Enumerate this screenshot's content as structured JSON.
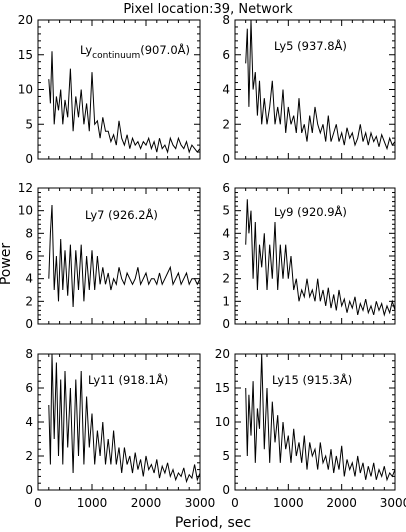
{
  "figure": {
    "title": "Pixel location:39, Network",
    "xlabel": "Period, sec",
    "ylabel": "Power"
  },
  "chart_data": [
    {
      "type": "line",
      "label_main": "Ly",
      "label_sub": "continuum",
      "label_rest": "(907.0Å)",
      "xlim": [
        0,
        3000
      ],
      "ylim": [
        0,
        20
      ],
      "yticks": [
        "0",
        "5",
        "10",
        "15",
        "20"
      ],
      "xticks": [
        "0",
        "1000",
        "2000",
        "3000"
      ],
      "x": [
        200,
        230,
        260,
        300,
        340,
        380,
        420,
        460,
        500,
        550,
        600,
        650,
        700,
        750,
        800,
        850,
        900,
        950,
        1000,
        1050,
        1100,
        1150,
        1200,
        1250,
        1300,
        1350,
        1400,
        1450,
        1500,
        1550,
        1600,
        1650,
        1700,
        1750,
        1800,
        1850,
        1900,
        1950,
        2000,
        2050,
        2100,
        2150,
        2200,
        2250,
        2300,
        2350,
        2400,
        2450,
        2500,
        2550,
        2600,
        2650,
        2700,
        2750,
        2800,
        2850,
        2900,
        2950,
        3000
      ],
      "values": [
        11.5,
        8,
        15.5,
        5,
        9,
        7,
        10,
        5,
        8.5,
        6,
        13,
        4,
        9,
        6,
        10,
        5,
        8,
        4,
        12.5,
        5,
        5.5,
        3,
        6,
        4,
        4,
        2.5,
        3.5,
        2,
        5.5,
        3,
        2,
        3.5,
        1.5,
        3,
        2,
        2.5,
        1.5,
        2.5,
        2,
        3,
        1.5,
        2.5,
        1,
        3,
        1.5,
        2,
        1,
        3,
        2,
        1.5,
        3,
        2,
        1.5,
        2.5,
        1,
        2,
        1.5,
        1,
        1.5
      ]
    },
    {
      "type": "line",
      "label_main": "Ly5",
      "label_sub": "",
      "label_rest": "(937.8Å)",
      "xlim": [
        0,
        3000
      ],
      "ylim": [
        0,
        8
      ],
      "yticks": [
        "0",
        "2",
        "4",
        "6",
        "8"
      ],
      "xticks": [
        "0",
        "1000",
        "2000",
        "3000"
      ],
      "x": [
        200,
        230,
        260,
        300,
        340,
        380,
        420,
        460,
        500,
        550,
        600,
        650,
        700,
        750,
        800,
        850,
        900,
        950,
        1000,
        1050,
        1100,
        1150,
        1200,
        1250,
        1300,
        1350,
        1400,
        1450,
        1500,
        1550,
        1600,
        1650,
        1700,
        1750,
        1800,
        1850,
        1900,
        1950,
        2000,
        2050,
        2100,
        2150,
        2200,
        2250,
        2300,
        2350,
        2400,
        2450,
        2500,
        2550,
        2600,
        2650,
        2700,
        2750,
        2800,
        2850,
        2900,
        2950,
        3000
      ],
      "values": [
        5.5,
        7.5,
        3,
        8,
        4,
        5,
        2.5,
        4.5,
        2,
        3.5,
        2,
        3,
        4.5,
        2,
        3,
        2,
        4,
        1.5,
        3,
        2,
        2.5,
        1.5,
        3.5,
        1.5,
        2,
        1,
        2.5,
        1.5,
        3,
        2,
        1.5,
        2,
        1,
        2.5,
        1,
        1.5,
        2,
        1,
        1.5,
        0.8,
        1.8,
        1.2,
        1.5,
        0.8,
        1.2,
        2,
        1,
        1.5,
        0.8,
        1.5,
        1,
        1.3,
        0.7,
        1.4,
        1,
        0.6,
        1.2,
        0.8,
        1
      ]
    },
    {
      "type": "line",
      "label_main": "Ly7",
      "label_sub": "",
      "label_rest": "(926.2Å)",
      "xlim": [
        0,
        3000
      ],
      "ylim": [
        0,
        12
      ],
      "yticks": [
        "0",
        "2",
        "4",
        "6",
        "8",
        "10",
        "12"
      ],
      "xticks": [
        "0",
        "1000",
        "2000",
        "3000"
      ],
      "x": [
        200,
        230,
        260,
        300,
        340,
        380,
        420,
        460,
        500,
        550,
        600,
        650,
        700,
        750,
        800,
        850,
        900,
        950,
        1000,
        1050,
        1100,
        1150,
        1200,
        1250,
        1300,
        1350,
        1400,
        1450,
        1500,
        1550,
        1600,
        1650,
        1700,
        1750,
        1800,
        1850,
        1900,
        1950,
        2000,
        2050,
        2100,
        2150,
        2200,
        2250,
        2300,
        2350,
        2400,
        2450,
        2500,
        2550,
        2600,
        2650,
        2700,
        2750,
        2800,
        2850,
        2900,
        2950,
        3000
      ],
      "values": [
        4,
        8,
        10.5,
        3,
        6,
        2,
        7.5,
        3,
        6.5,
        2.5,
        7,
        1.5,
        6.5,
        3,
        7,
        2,
        6,
        3,
        6.5,
        3,
        6,
        3.5,
        5,
        3.5,
        4.5,
        3,
        4,
        3.5,
        5,
        4,
        3.5,
        4.5,
        4,
        3.5,
        4,
        5,
        3.5,
        4,
        4.5,
        3.5,
        4,
        4,
        3.5,
        4.5,
        3.5,
        4,
        4.5,
        5,
        3.5,
        4,
        4.5,
        3.5,
        4,
        4.5,
        3.5,
        4,
        4,
        3.5,
        4
      ]
    },
    {
      "type": "line",
      "label_main": "Ly9",
      "label_sub": "",
      "label_rest": "(920.9Å)",
      "xlim": [
        0,
        3000
      ],
      "ylim": [
        0,
        6
      ],
      "yticks": [
        "0",
        "1",
        "2",
        "3",
        "4",
        "5",
        "6"
      ],
      "xticks": [
        "0",
        "1000",
        "2000",
        "3000"
      ],
      "x": [
        200,
        230,
        260,
        300,
        340,
        380,
        420,
        460,
        500,
        550,
        600,
        650,
        700,
        750,
        800,
        850,
        900,
        950,
        1000,
        1050,
        1100,
        1150,
        1200,
        1250,
        1300,
        1350,
        1400,
        1450,
        1500,
        1550,
        1600,
        1650,
        1700,
        1750,
        1800,
        1850,
        1900,
        1950,
        2000,
        2050,
        2100,
        2150,
        2200,
        2250,
        2300,
        2350,
        2400,
        2450,
        2500,
        2550,
        2600,
        2650,
        2700,
        2750,
        2800,
        2850,
        2900,
        2950,
        3000
      ],
      "values": [
        3.5,
        5.5,
        4,
        5,
        2,
        4.5,
        1.5,
        3.5,
        2.5,
        4,
        1.5,
        3.5,
        2,
        4.5,
        1.5,
        3.5,
        2,
        3.5,
        2,
        3,
        1.5,
        2,
        1,
        1.5,
        1.2,
        2,
        1.2,
        1.5,
        1,
        2,
        1,
        1.5,
        0.8,
        1.6,
        0.7,
        1.3,
        0.6,
        1.5,
        0.8,
        1.1,
        0.5,
        1,
        0.7,
        1.2,
        0.4,
        0.9,
        0.6,
        1.1,
        0.5,
        0.8,
        0.4,
        1,
        0.6,
        0.9,
        0.4,
        0.8,
        0.5,
        1,
        0.6
      ]
    },
    {
      "type": "line",
      "label_main": "Ly11",
      "label_sub": "",
      "label_rest": "(918.1Å)",
      "xlim": [
        0,
        3000
      ],
      "ylim": [
        0,
        8
      ],
      "yticks": [
        "0",
        "2",
        "4",
        "6",
        "8"
      ],
      "xticks": [
        "0",
        "1000",
        "2000",
        "3000"
      ],
      "x": [
        200,
        230,
        260,
        300,
        340,
        380,
        420,
        460,
        500,
        550,
        600,
        650,
        700,
        750,
        800,
        850,
        900,
        950,
        1000,
        1050,
        1100,
        1150,
        1200,
        1250,
        1300,
        1350,
        1400,
        1450,
        1500,
        1550,
        1600,
        1650,
        1700,
        1750,
        1800,
        1850,
        1900,
        1950,
        2000,
        2050,
        2100,
        2150,
        2200,
        2250,
        2300,
        2350,
        2400,
        2450,
        2500,
        2550,
        2600,
        2650,
        2700,
        2750,
        2800,
        2850,
        2900,
        2950,
        3000
      ],
      "values": [
        5,
        1.5,
        8,
        3,
        7.5,
        2,
        6.5,
        1.5,
        7,
        2.5,
        6,
        1,
        6.5,
        2,
        7,
        1.5,
        5.5,
        2.5,
        4.5,
        1.5,
        3.5,
        2,
        4,
        1.5,
        3,
        1.5,
        3.5,
        1.5,
        2.5,
        1,
        2.5,
        1.5,
        2,
        1,
        2.2,
        1.2,
        1.8,
        0.8,
        2,
        1.2,
        1.5,
        1,
        1.8,
        0.7,
        1.4,
        1,
        1.6,
        0.8,
        1.2,
        0.6,
        1,
        0.8,
        1.3,
        0.5,
        0.9,
        0.7,
        1.5,
        0.6,
        1
      ]
    },
    {
      "type": "line",
      "label_main": "Ly15",
      "label_sub": "",
      "label_rest": "(915.3Å)",
      "xlim": [
        0,
        3000
      ],
      "ylim": [
        0,
        20
      ],
      "yticks": [
        "0",
        "5",
        "10",
        "15",
        "20"
      ],
      "xticks": [
        "0",
        "1000",
        "2000",
        "3000"
      ],
      "x": [
        200,
        230,
        260,
        300,
        340,
        380,
        420,
        460,
        500,
        550,
        600,
        650,
        700,
        750,
        800,
        850,
        900,
        950,
        1000,
        1050,
        1100,
        1150,
        1200,
        1250,
        1300,
        1350,
        1400,
        1450,
        1500,
        1550,
        1600,
        1650,
        1700,
        1750,
        1800,
        1850,
        1900,
        1950,
        2000,
        2050,
        2100,
        2150,
        2200,
        2250,
        2300,
        2350,
        2400,
        2450,
        2500,
        2550,
        2600,
        2650,
        2700,
        2750,
        2800,
        2850,
        2900,
        2950,
        3000
      ],
      "values": [
        15,
        5,
        14,
        8,
        16,
        4,
        12,
        9,
        20,
        6,
        15,
        4,
        13,
        7,
        11,
        4,
        10,
        6,
        8,
        4,
        9,
        5,
        7,
        4,
        8,
        3,
        7,
        5,
        6,
        3,
        7,
        4,
        5,
        3,
        6,
        2.5,
        5,
        3,
        6.5,
        2,
        4.5,
        3,
        4,
        2,
        5,
        2.5,
        4,
        1.5,
        3.5,
        2,
        4,
        1.5,
        3,
        2,
        3.5,
        1.5,
        2.5,
        2,
        3
      ]
    }
  ]
}
